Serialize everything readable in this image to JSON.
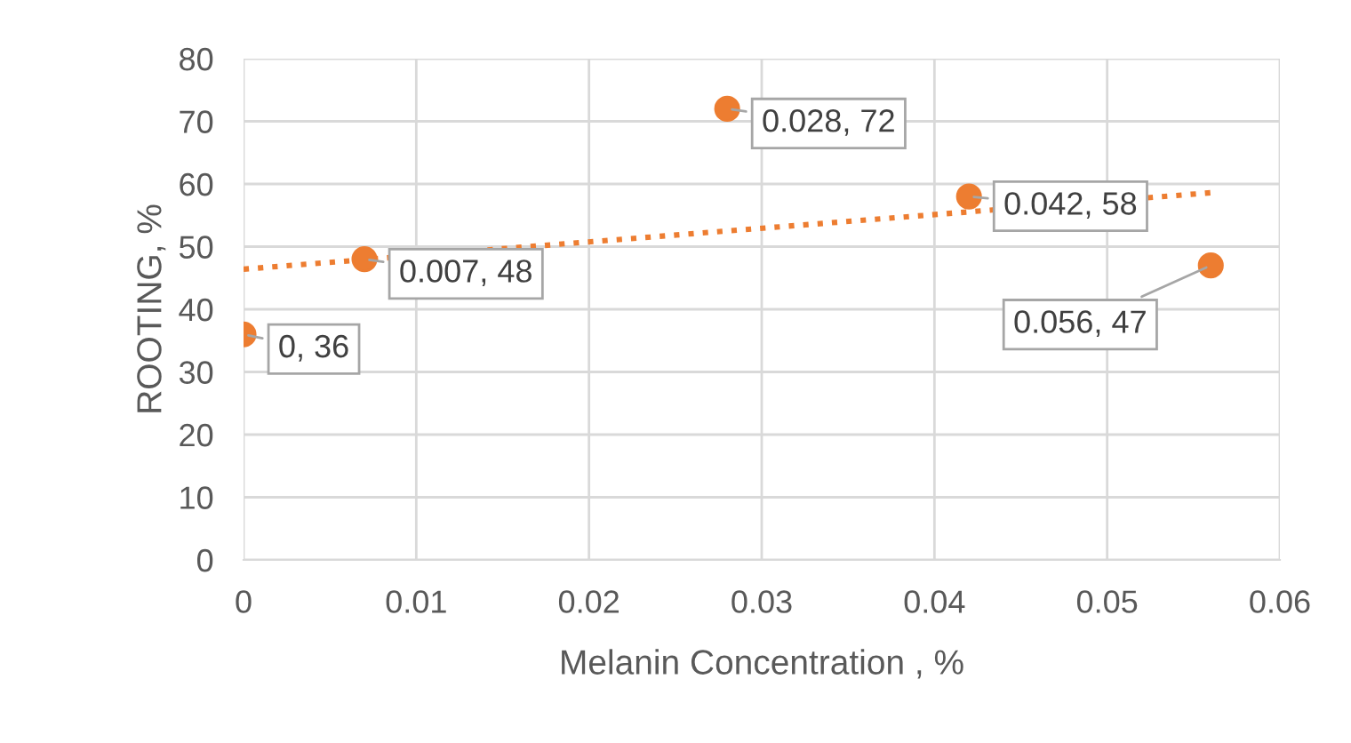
{
  "chart_data": {
    "type": "scatter",
    "xlabel": "Melanin Concentration , %",
    "ylabel": "ROOTING, %",
    "xlim": [
      0,
      0.06
    ],
    "xticks": [
      0,
      0.01,
      0.02,
      0.03,
      0.04,
      0.05,
      0.06
    ],
    "ylim": [
      0,
      80
    ],
    "yticks": [
      0,
      10,
      20,
      30,
      40,
      50,
      60,
      70,
      80
    ],
    "grid": true,
    "series": [
      {
        "color": "#ed7d31",
        "marker": "circle",
        "x": [
          0,
          0.007,
          0.028,
          0.042,
          0.056
        ],
        "values": [
          36,
          48,
          72,
          58,
          47
        ],
        "value_labels": [
          "0, 36",
          "0.007, 48",
          "0.028, 72",
          "0.042, 58",
          "0.056, 47"
        ]
      },
      {
        "type": "line",
        "color": "#ed7d31",
        "line_style": "dotted",
        "x": [
          0,
          0.056
        ],
        "values": [
          46.4,
          58.6
        ]
      }
    ]
  }
}
